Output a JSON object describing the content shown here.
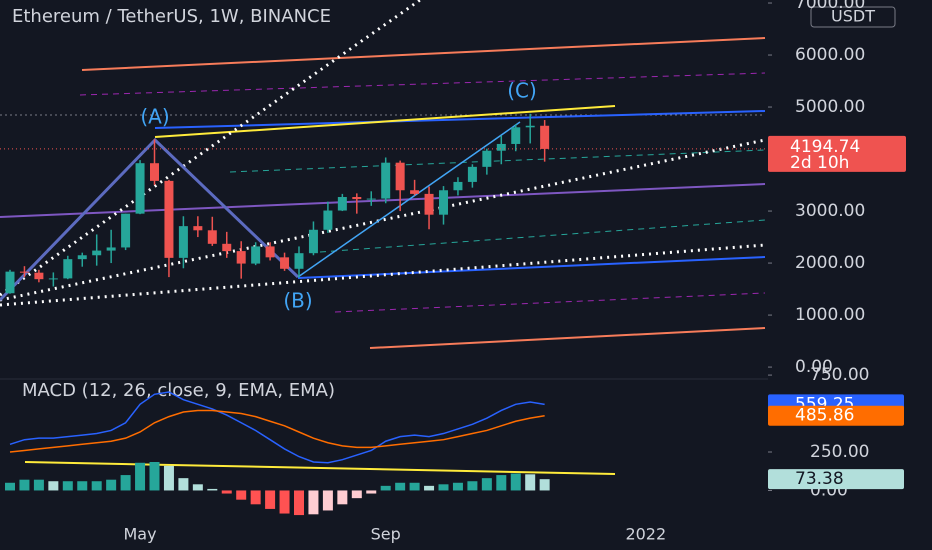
{
  "chart_data": {
    "type": "candlestick",
    "title": "Ethereum / TetherUS, 1W, BINANCE",
    "annotations": [
      "(A)",
      "(B)",
      "(C)"
    ],
    "currency": "USDT",
    "countdown": "2d 10h",
    "categories": [
      null,
      null,
      null,
      null,
      null,
      null,
      null,
      null,
      null,
      "May",
      null,
      null,
      null,
      null,
      null,
      null,
      null,
      null,
      null,
      null,
      null,
      null,
      null,
      null,
      null,
      null,
      "Sep",
      null,
      null,
      null,
      null,
      null,
      null,
      null,
      null,
      null,
      null,
      null,
      null,
      null,
      null,
      null,
      null,
      null,
      "2022",
      null,
      null,
      null,
      null,
      null,
      null,
      null,
      null
    ],
    "open": [
      1420,
      1835,
      1815,
      1690,
      1705,
      2075,
      2150,
      2240,
      2300,
      2950,
      3920,
      3580,
      2100,
      2710,
      2630,
      2370,
      2230,
      1990,
      2320,
      2110,
      1890,
      2190,
      2640,
      3010,
      3270,
      3230,
      3240,
      3930,
      3400,
      3330,
      2930,
      3400,
      3560,
      3850,
      4160,
      4290,
      4610,
      4640,
      null,
      null,
      null,
      null,
      null,
      null,
      null,
      null,
      null,
      null,
      null,
      null,
      null,
      null,
      null
    ],
    "high": [
      1870,
      1940,
      1870,
      1820,
      2140,
      2200,
      2550,
      2640,
      2950,
      3980,
      4380,
      3600,
      2900,
      2900,
      2890,
      2600,
      2420,
      2400,
      2400,
      2200,
      2320,
      2800,
      3180,
      3330,
      3340,
      3380,
      4030,
      3970,
      3600,
      3470,
      3480,
      3650,
      3900,
      4200,
      4450,
      4670,
      4870,
      4750,
      null,
      null,
      null,
      null,
      null,
      null,
      null,
      null,
      null,
      null,
      null,
      null,
      null,
      null,
      null
    ],
    "low": [
      1410,
      1730,
      1630,
      1550,
      1690,
      1930,
      1950,
      2000,
      2250,
      2940,
      3500,
      1730,
      1900,
      2500,
      2330,
      2100,
      1700,
      1960,
      2050,
      1850,
      1720,
      2150,
      2580,
      3000,
      2950,
      3100,
      3150,
      3000,
      3300,
      2650,
      2740,
      3300,
      3450,
      3700,
      3900,
      4150,
      4300,
      3950,
      null,
      null,
      null,
      null,
      null,
      null,
      null,
      null,
      null,
      null,
      null,
      null,
      null,
      null,
      null
    ],
    "close": [
      1835,
      1815,
      1690,
      1705,
      2075,
      2150,
      2240,
      2300,
      2950,
      3920,
      3580,
      2100,
      2710,
      2630,
      2370,
      2230,
      1990,
      2320,
      2110,
      1890,
      2190,
      2640,
      3010,
      3270,
      3230,
      3240,
      3930,
      3400,
      3330,
      2930,
      3400,
      3560,
      3850,
      4160,
      4290,
      4610,
      4640,
      4194.74,
      null,
      null,
      null,
      null,
      null,
      null,
      null,
      null,
      null,
      null,
      null,
      null,
      null,
      null,
      null
    ],
    "colors": {
      "up": "#26a69a",
      "down": "#ef5350"
    },
    "ylim": [
      -210,
      7058
    ],
    "yticks": [
      {
        "value": 0,
        "label": "0.00"
      },
      {
        "value": 1000,
        "label": "1000.00"
      },
      {
        "value": 2000,
        "label": "2000.00"
      },
      {
        "value": 3000,
        "label": "3000.00"
      },
      {
        "value": 4000,
        "label": "4000.00"
      },
      {
        "value": 5000,
        "label": "5000.00"
      },
      {
        "value": 6000,
        "label": "6000.00"
      },
      {
        "value": 7000,
        "label": "7000.00"
      }
    ],
    "indicator": {
      "title": "MACD (12, 26, close, 9, EMA, EMA)",
      "ylim": [
        -192,
        718
      ],
      "yticks": [
        {
          "value": 0,
          "label": "0.00"
        },
        {
          "value": 250,
          "label": "250.00"
        },
        {
          "value": 750,
          "label": "750.00"
        }
      ],
      "macd": {
        "color": "#2962ff",
        "values": [
          300,
          330,
          340,
          340,
          350,
          360,
          370,
          390,
          440,
          560,
          625,
          640,
          590,
          560,
          530,
          490,
          440,
          390,
          330,
          270,
          220,
          185,
          180,
          200,
          230,
          260,
          320,
          350,
          360,
          350,
          370,
          400,
          430,
          470,
          520,
          560,
          575,
          559.25
        ]
      },
      "signal": {
        "color": "#ff6d00",
        "values": [
          250,
          260,
          270,
          280,
          290,
          300,
          310,
          320,
          340,
          380,
          440,
          480,
          510,
          520,
          520,
          510,
          500,
          480,
          450,
          420,
          380,
          340,
          310,
          290,
          280,
          280,
          290,
          300,
          310,
          320,
          330,
          350,
          370,
          390,
          420,
          450,
          470,
          485.86
        ]
      },
      "histogram": {
        "colors": {
          "up_strong": "#26a69a",
          "up_weak": "#b2dfdb",
          "down_strong": "#ff5252",
          "down_weak": "#ffcdd2"
        },
        "values": [
          50,
          70,
          70,
          60,
          60,
          60,
          60,
          70,
          100,
          180,
          185,
          160,
          80,
          40,
          10,
          -20,
          -60,
          -90,
          -120,
          -150,
          -160,
          -155,
          -130,
          -90,
          -50,
          -20,
          30,
          50,
          50,
          30,
          40,
          50,
          60,
          80,
          100,
          110,
          105,
          73.38
        ]
      }
    }
  }
}
